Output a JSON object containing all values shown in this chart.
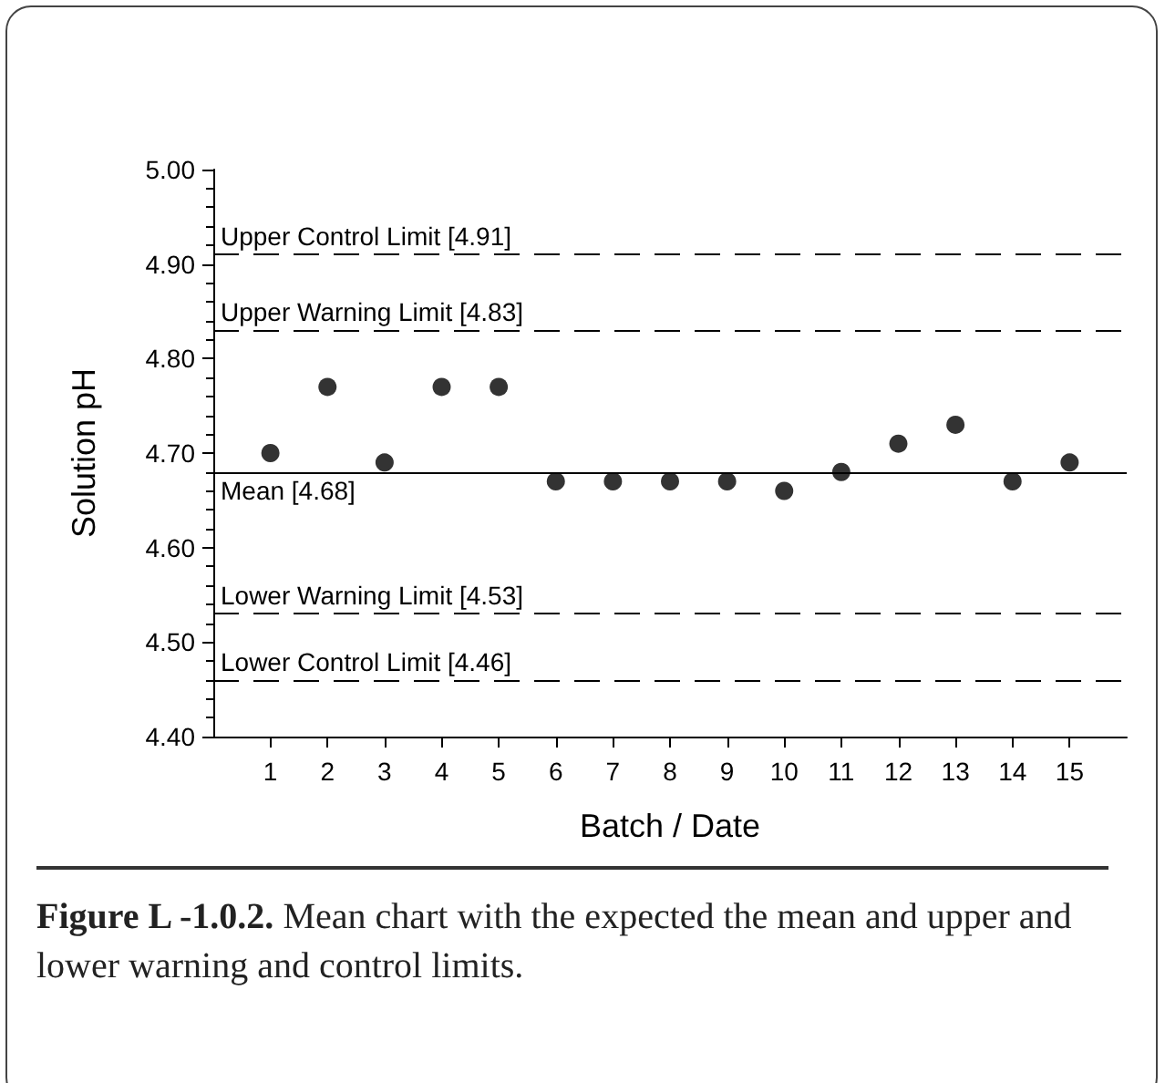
{
  "chart_data": {
    "type": "scatter",
    "xlabel": "Batch / Date",
    "ylabel": "Solution pH",
    "x": [
      1,
      2,
      3,
      4,
      5,
      6,
      7,
      8,
      9,
      10,
      11,
      12,
      13,
      14,
      15
    ],
    "values": [
      4.7,
      4.77,
      4.69,
      4.77,
      4.77,
      4.67,
      4.67,
      4.67,
      4.67,
      4.66,
      4.68,
      4.71,
      4.73,
      4.67,
      4.69
    ],
    "color": "#000000",
    "marker": "circle",
    "grid": false,
    "xlim": [
      0,
      16
    ],
    "xticks": [
      1,
      2,
      3,
      4,
      5,
      6,
      7,
      8,
      9,
      10,
      11,
      12,
      13,
      14,
      15
    ],
    "ylim": [
      4.4,
      5.0
    ],
    "yticks": [
      {
        "value": 4.4,
        "label": "4.40"
      },
      {
        "value": 4.5,
        "label": "4.50"
      },
      {
        "value": 4.6,
        "label": "4.60"
      },
      {
        "value": 4.7,
        "label": "4.70"
      },
      {
        "value": 4.8,
        "label": "4.80"
      },
      {
        "value": 4.9,
        "label": "4.90"
      },
      {
        "value": 5.0,
        "label": "5.00"
      }
    ],
    "ref_lines": [
      {
        "axis": "y",
        "value": 4.91,
        "label": "Upper Control Limit [4.91]",
        "line_style": "dashed",
        "color": "#000000"
      },
      {
        "axis": "y",
        "value": 4.83,
        "label": "Upper Warning Limit [4.83]",
        "line_style": "dashed",
        "color": "#000000"
      },
      {
        "axis": "y",
        "value": 4.68,
        "label": "Mean [4.68]",
        "line_style": "solid",
        "color": "#000000"
      },
      {
        "axis": "y",
        "value": 4.53,
        "label": "Lower Warning Limit [4.53]",
        "line_style": "dashed",
        "color": "#000000"
      },
      {
        "axis": "y",
        "value": 4.46,
        "label": "Lower Control Limit [4.46]",
        "line_style": "dashed",
        "color": "#000000"
      }
    ],
    "annotations": [
      "Figure L -1.0.2.",
      "Mean chart with the expected the mean and upper and lower warning and control limits."
    ]
  }
}
